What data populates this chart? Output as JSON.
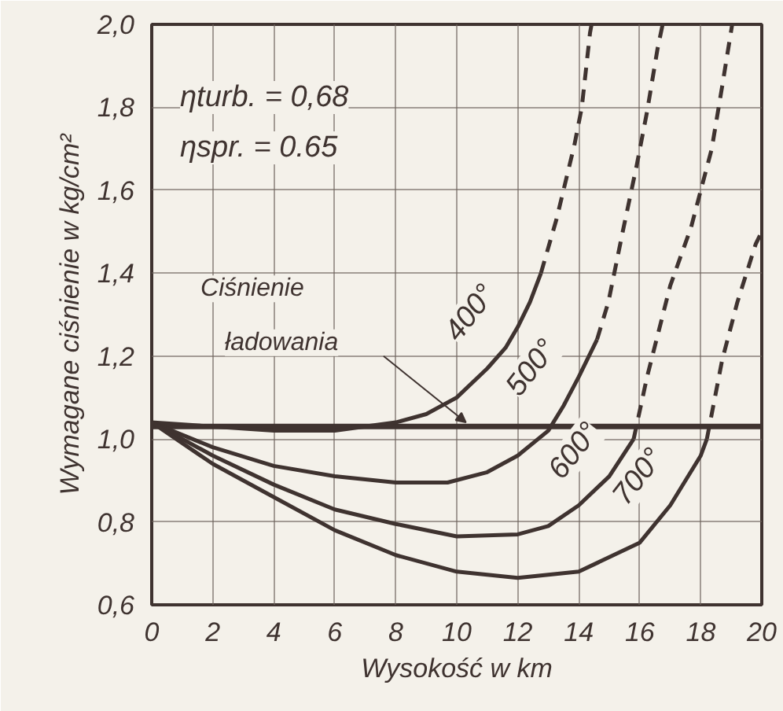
{
  "chart_data": {
    "type": "line",
    "xlabel": "Wysokość w km",
    "ylabel": "Wymagane ciśnienie w kg/cm²",
    "xlim": [
      0,
      20
    ],
    "xticks": [
      0,
      2,
      4,
      6,
      8,
      10,
      12,
      14,
      16,
      18,
      20
    ],
    "ylim": [
      0.6,
      2.0
    ],
    "yticks": [
      {
        "value": 0.6,
        "label": "0,6"
      },
      {
        "value": 0.8,
        "label": "0,8"
      },
      {
        "value": 1.0,
        "label": "1,0"
      },
      {
        "value": 1.2,
        "label": "1,2"
      },
      {
        "value": 1.4,
        "label": "1,4"
      },
      {
        "value": 1.6,
        "label": "1,6"
      },
      {
        "value": 1.8,
        "label": "1,8"
      },
      {
        "value": 2.0,
        "label": "2,0"
      }
    ],
    "grid": true,
    "marker": "none",
    "series": [
      {
        "name": "Ciśnienie ładowania",
        "color": "#3f3330",
        "line_style": "solid",
        "x": [
          0,
          20
        ],
        "values": [
          1.03,
          1.03
        ]
      },
      {
        "name": "400°",
        "color": "#3f3330",
        "line_style": "solid",
        "x": [
          0,
          2,
          4,
          6,
          7,
          8,
          9,
          10,
          11,
          11.6,
          12,
          12.4,
          12.76
        ],
        "values": [
          1.04,
          1.03,
          1.02,
          1.02,
          1.03,
          1.04,
          1.06,
          1.1,
          1.17,
          1.22,
          1.27,
          1.33,
          1.4
        ]
      },
      {
        "color": "#3f3330",
        "line_style": "dashed",
        "x": [
          12.76,
          13.27,
          13.86,
          14.1,
          14.37,
          14.42
        ],
        "values": [
          1.4,
          1.53,
          1.71,
          1.8,
          1.98,
          2.0
        ]
      },
      {
        "name": "500°",
        "color": "#3f3330",
        "line_style": "solid",
        "x": [
          0,
          2,
          4,
          6,
          8,
          9.7,
          11,
          12,
          13,
          13.5,
          14,
          14.6
        ],
        "values": [
          1.04,
          0.98,
          0.935,
          0.91,
          0.895,
          0.895,
          0.92,
          0.96,
          1.02,
          1.08,
          1.15,
          1.24
        ]
      },
      {
        "color": "#3f3330",
        "line_style": "dashed",
        "x": [
          14.6,
          14.97,
          15.47,
          15.9,
          16.24,
          16.58,
          16.75
        ],
        "values": [
          1.24,
          1.33,
          1.51,
          1.66,
          1.79,
          1.94,
          2.0
        ]
      },
      {
        "name": "600°",
        "color": "#3f3330",
        "line_style": "solid",
        "x": [
          0,
          2,
          4,
          6,
          8,
          10,
          12,
          13,
          14,
          15,
          15.8
        ],
        "values": [
          1.04,
          0.96,
          0.89,
          0.83,
          0.795,
          0.765,
          0.77,
          0.79,
          0.84,
          0.91,
          1.0
        ]
      },
      {
        "color": "#3f3330",
        "line_style": "dashed",
        "x": [
          15.8,
          16.24,
          17.0,
          17.68,
          18.36,
          18.7,
          19.03
        ],
        "values": [
          1.0,
          1.15,
          1.37,
          1.51,
          1.7,
          1.85,
          2.0
        ]
      },
      {
        "name": "700°",
        "color": "#3f3330",
        "line_style": "solid",
        "x": [
          0,
          2,
          4,
          6,
          8,
          10,
          12,
          14,
          16,
          17,
          18,
          18.2
        ],
        "values": [
          1.04,
          0.94,
          0.86,
          0.78,
          0.72,
          0.68,
          0.665,
          0.68,
          0.75,
          0.84,
          0.96,
          1.0
        ]
      },
      {
        "color": "#3f3330",
        "line_style": "dashed",
        "x": [
          18.2,
          18.7,
          19.2,
          19.8,
          20
        ],
        "values": [
          1.0,
          1.19,
          1.33,
          1.47,
          1.5
        ]
      }
    ],
    "annotations": [
      "ηturb. = 0,68",
      "ηspr.  = 0.65"
    ]
  }
}
